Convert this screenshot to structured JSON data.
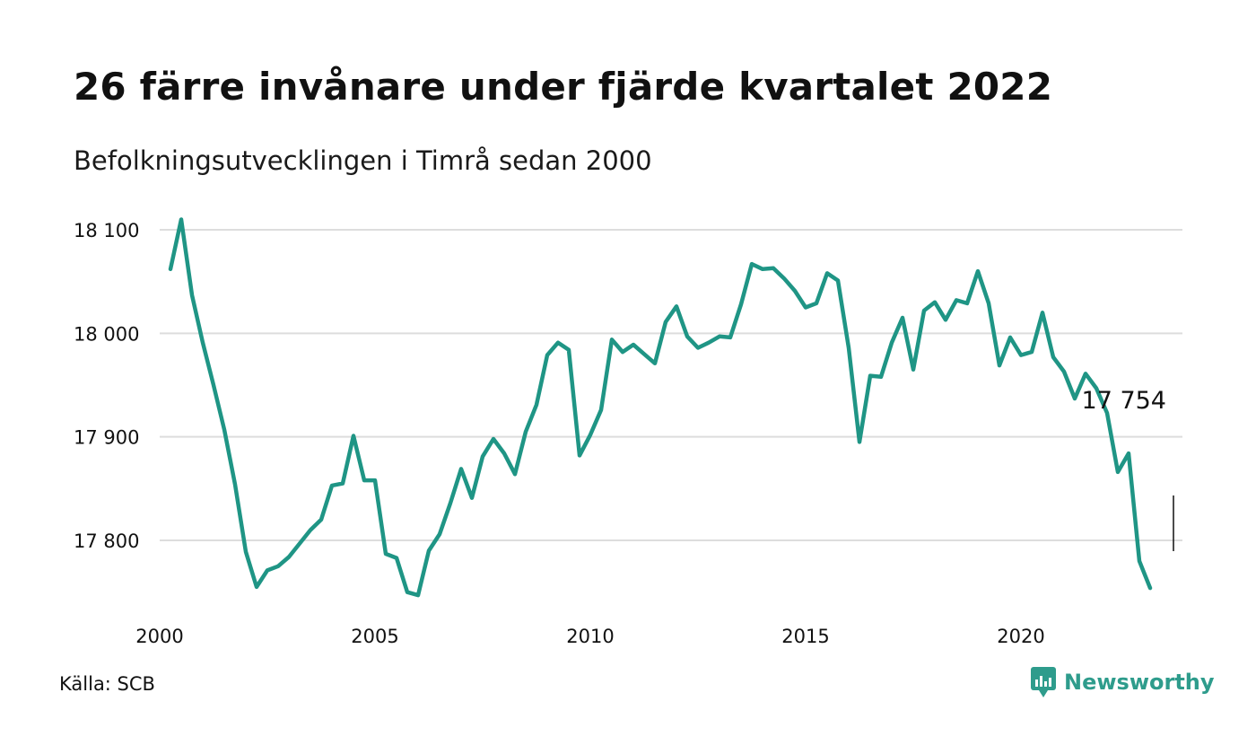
{
  "header": {
    "title": "26 färre invånare under fjärde kvartalet 2022",
    "subtitle": "Befolkningsutvecklingen i Timrå sedan 2000"
  },
  "footer": {
    "source": "Källa: SCB",
    "brand": "Newsworthy"
  },
  "colors": {
    "line": "#1f9585",
    "grid": "#dddddd",
    "brand": "#2e9c8c"
  },
  "icons": {
    "brand_logo": "newsworthy-logo-icon"
  },
  "chart_data": {
    "type": "line",
    "title": "26 färre invånare under fjärde kvartalet 2022",
    "subtitle": "Befolkningsutvecklingen i Timrå sedan 2000",
    "xlabel": "",
    "ylabel": "",
    "grid": true,
    "legend": "none",
    "xlim": [
      2000,
      2023.4
    ],
    "ylim": [
      17735,
      18115
    ],
    "x_ticks": [
      2000,
      2005,
      2010,
      2015,
      2020
    ],
    "x_tick_labels": [
      "2000",
      "2005",
      "2010",
      "2015",
      "2020"
    ],
    "y_ticks": [
      17800,
      17900,
      18000,
      18100
    ],
    "y_tick_labels": [
      "17 800",
      "17 900",
      "18 000",
      "18 100"
    ],
    "series": [
      {
        "x": [
          2000.25,
          2000.5,
          2000.75,
          2001.0,
          2001.25,
          2001.5,
          2001.75,
          2002.0,
          2002.25,
          2002.5,
          2002.75,
          2003.0,
          2003.25,
          2003.5,
          2003.75,
          2004.0,
          2004.25,
          2004.5,
          2004.75,
          2005.0,
          2005.25,
          2005.5,
          2005.75,
          2006.0,
          2006.25,
          2006.5,
          2006.75,
          2007.0,
          2007.25,
          2007.5,
          2007.75,
          2008.0,
          2008.25,
          2008.5,
          2008.75,
          2009.0,
          2009.25,
          2009.5,
          2009.75,
          2010.0,
          2010.25,
          2010.5,
          2010.75,
          2011.0,
          2011.25,
          2011.5,
          2011.75,
          2012.0,
          2012.25,
          2012.5,
          2012.75,
          2013.0,
          2013.25,
          2013.5,
          2013.75,
          2014.0,
          2014.25,
          2014.5,
          2014.75,
          2015.0,
          2015.25,
          2015.5,
          2015.75,
          2016.0,
          2016.25,
          2016.5,
          2016.75,
          2017.0,
          2017.25,
          2017.5,
          2017.75,
          2018.0,
          2018.25,
          2018.5,
          2018.75,
          2019.0,
          2019.25,
          2019.5,
          2019.75,
          2020.0,
          2020.25,
          2020.5,
          2020.75,
          2021.0,
          2021.25,
          2021.5,
          2021.75,
          2022.0,
          2022.25,
          2022.5,
          2022.75,
          2023.0
        ],
        "values": [
          18062,
          18110,
          18037,
          17991,
          17950,
          17907,
          17854,
          17789,
          17755,
          17771,
          17775,
          17784,
          17797,
          17810,
          17820,
          17853,
          17855,
          17901,
          17858,
          17858,
          17787,
          17783,
          17750,
          17747,
          17790,
          17806,
          17836,
          17869,
          17841,
          17881,
          17898,
          17884,
          17864,
          17905,
          17931,
          17979,
          17991,
          17984,
          17882,
          17902,
          17926,
          17994,
          17982,
          17989,
          17980,
          17971,
          18011,
          18026,
          17997,
          17986,
          17991,
          17997,
          17996,
          18028,
          18067,
          18062,
          18063,
          18053,
          18041,
          18025,
          18029,
          18058,
          18051,
          17986,
          17895,
          17959,
          17958,
          17991,
          18015,
          17965,
          18022,
          18030,
          18013,
          18032,
          18029,
          18060,
          18029,
          17969,
          17996,
          17979,
          17982,
          18020,
          17977,
          17963,
          17937,
          17961,
          17947,
          17923,
          17866,
          17884,
          17780,
          17754
        ]
      }
    ],
    "annotation": {
      "x": 2023.0,
      "y": 17754,
      "label": "17 754"
    }
  }
}
